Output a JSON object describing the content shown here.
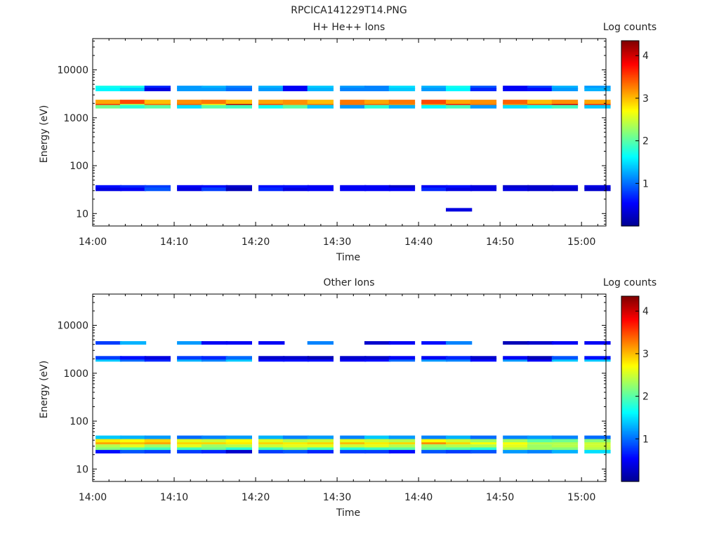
{
  "figure_title": "RPCICA141229T14.PNG",
  "colors": {
    "colormap": [
      "#00008f",
      "#0000ff",
      "#0080ff",
      "#00ffff",
      "#80ff80",
      "#ffff00",
      "#ff8000",
      "#ff0000",
      "#800000"
    ],
    "frame": "#000000"
  },
  "chart_data": [
    {
      "type": "heatmap",
      "title": "H+ He++ Ions",
      "xlabel": "Time",
      "ylabel": "Energy (eV)",
      "colorbar_label": "Log counts",
      "yscale": "log",
      "ylim": [
        5.5,
        45000
      ],
      "xlim": [
        "14:00",
        "15:03"
      ],
      "x_ticks": [
        "14:00",
        "14:10",
        "14:20",
        "14:30",
        "14:40",
        "14:50",
        "15:00"
      ],
      "y_ticks": [
        "10",
        "100",
        "1000",
        "10000"
      ],
      "colorbar_range": [
        0,
        4.35
      ],
      "colorbar_ticks": [
        "1",
        "2",
        "3",
        "4"
      ],
      "time_bins": [
        "14:02",
        "14:05",
        "14:08",
        "14:12",
        "14:15",
        "14:18",
        "14:22",
        "14:25",
        "14:28",
        "14:32",
        "14:35",
        "14:38",
        "14:42",
        "14:45",
        "14:48",
        "14:52",
        "14:55",
        "14:58",
        "15:02"
      ],
      "rows": [
        {
          "energy": 1900,
          "counts": [
            3.6,
            2.4,
            3.4,
            3.4,
            2.8,
            4.1,
            3.5,
            3.2,
            3.3,
            3.3,
            3.4,
            3.2,
            3.2,
            3.7,
            3.3,
            3.2,
            3.5,
            4.0,
            3.6
          ]
        },
        {
          "energy": 2150,
          "counts": [
            3.1,
            3.5,
            3.0,
            3.2,
            3.3,
            3.0,
            3.1,
            3.2,
            3.0,
            3.3,
            3.1,
            3.3,
            3.5,
            3.1,
            3.2,
            3.4,
            3.0,
            3.2,
            3.1
          ]
        },
        {
          "energy": 1700,
          "counts": [
            2.1,
            1.8,
            2.0,
            1.5,
            2.0,
            1.9,
            1.7,
            2.0,
            1.4,
            1.2,
            1.8,
            1.3,
            1.6,
            1.9,
            1.2,
            1.5,
            1.7,
            1.9,
            1.4
          ]
        },
        {
          "energy": 4300,
          "counts": [
            1.7,
            1.7,
            0.7,
            1.2,
            1.3,
            1.1,
            1.3,
            0.5,
            1.4,
            1.2,
            1.1,
            1.5,
            1.3,
            1.7,
            0.9,
            0.5,
            0.8,
            1.3,
            1.2
          ]
        },
        {
          "energy": 3900,
          "counts": [
            1.6,
            1.4,
            0.4,
            1.2,
            1.2,
            1.0,
            1.2,
            0.5,
            1.3,
            1.1,
            1.1,
            1.4,
            1.2,
            1.6,
            0.7,
            0.5,
            0.6,
            1.2,
            1.3
          ]
        },
        {
          "energy": 36,
          "counts": [
            0.6,
            0.7,
            0.8,
            0.5,
            0.6,
            0.3,
            0.6,
            0.6,
            0.5,
            0.5,
            0.5,
            0.3,
            0.5,
            0.6,
            0.4,
            0.3,
            0.3,
            0.4,
            0.4
          ]
        },
        {
          "energy": 32,
          "counts": [
            0.4,
            0.5,
            0.9,
            0.4,
            0.8,
            0.2,
            0.7,
            0.4,
            0.5,
            0.5,
            0.5,
            0.5,
            0.7,
            0.4,
            0.4,
            0.4,
            0.3,
            0.3,
            0.3
          ]
        },
        {
          "energy": 12,
          "counts": [
            null,
            null,
            null,
            null,
            null,
            null,
            null,
            null,
            null,
            null,
            null,
            null,
            null,
            0.4,
            null,
            null,
            null,
            null,
            null
          ]
        }
      ]
    },
    {
      "type": "heatmap",
      "title": "Other Ions",
      "xlabel": "Time",
      "ylabel": "Energy (eV)",
      "colorbar_label": "Log counts",
      "yscale": "log",
      "ylim": [
        5.5,
        45000
      ],
      "xlim": [
        "14:00",
        "15:03"
      ],
      "x_ticks": [
        "14:00",
        "14:10",
        "14:20",
        "14:30",
        "14:40",
        "14:50",
        "15:00"
      ],
      "y_ticks": [
        "10",
        "100",
        "1000",
        "10000"
      ],
      "colorbar_range": [
        0,
        4.35
      ],
      "colorbar_ticks": [
        "1",
        "2",
        "3",
        "4"
      ],
      "time_bins": [
        "14:02",
        "14:05",
        "14:08",
        "14:12",
        "14:15",
        "14:18",
        "14:22",
        "14:25",
        "14:28",
        "14:32",
        "14:35",
        "14:38",
        "14:42",
        "14:45",
        "14:48",
        "14:52",
        "14:55",
        "14:58",
        "15:02"
      ],
      "rows": [
        {
          "energy": 36,
          "counts": [
            3.1,
            3.0,
            3.1,
            2.9,
            2.9,
            2.8,
            2.9,
            2.8,
            2.9,
            3.0,
            2.8,
            2.9,
            3.2,
            2.9,
            2.7,
            2.7,
            2.4,
            2.4,
            2.5
          ]
        },
        {
          "energy": 40,
          "counts": [
            2.8,
            2.7,
            2.9,
            2.6,
            2.5,
            2.7,
            2.6,
            2.4,
            2.5,
            2.6,
            2.5,
            2.4,
            2.7,
            2.5,
            2.3,
            2.3,
            2.0,
            2.1,
            2.2
          ]
        },
        {
          "energy": 30,
          "counts": [
            2.4,
            2.6,
            2.3,
            2.6,
            2.3,
            2.4,
            2.5,
            2.6,
            2.6,
            2.5,
            2.6,
            2.4,
            2.3,
            2.4,
            2.4,
            2.6,
            2.3,
            2.4,
            2.5
          ]
        },
        {
          "energy": 26,
          "counts": [
            2.2,
            2.0,
            1.9,
            1.9,
            2.1,
            1.8,
            1.9,
            2.2,
            1.9,
            1.8,
            1.9,
            2.0,
            2.1,
            2.0,
            1.8,
            2.4,
            2.3,
            2.2,
            2.4
          ]
        },
        {
          "energy": 23,
          "counts": [
            0.6,
            0.9,
            0.8,
            0.8,
            0.7,
            0.3,
            0.8,
            0.9,
            0.7,
            0.8,
            0.8,
            0.6,
            0.9,
            0.8,
            0.9,
            1.2,
            1.1,
            1.3,
            1.5
          ]
        },
        {
          "energy": 46,
          "counts": [
            1.4,
            1.3,
            1.2,
            1.0,
            1.1,
            1.2,
            1.3,
            1.1,
            1.2,
            1.1,
            1.4,
            1.2,
            1.1,
            1.3,
            1.0,
            1.1,
            1.2,
            1.1,
            1.0
          ]
        },
        {
          "energy": 1900,
          "counts": [
            1.4,
            1.0,
            0.7,
            1.3,
            1.1,
            1.4,
            0.6,
            0.6,
            0.6,
            0.5,
            0.6,
            1.0,
            1.2,
            1.1,
            0.6,
            1.2,
            0.5,
            1.4,
            1.4
          ]
        },
        {
          "energy": 2100,
          "counts": [
            0.8,
            0.6,
            0.4,
            0.8,
            0.7,
            1.0,
            0.3,
            0.3,
            0.2,
            0.3,
            0.3,
            0.5,
            0.5,
            0.7,
            0.3,
            0.5,
            0.2,
            0.9,
            0.6
          ]
        },
        {
          "energy": 4300,
          "counts": [
            0.8,
            1.3,
            null,
            1.2,
            0.5,
            0.5,
            0.5,
            null,
            1.1,
            null,
            0.3,
            0.5,
            0.6,
            1.1,
            null,
            0.2,
            0.3,
            0.5,
            0.5
          ]
        }
      ]
    }
  ]
}
